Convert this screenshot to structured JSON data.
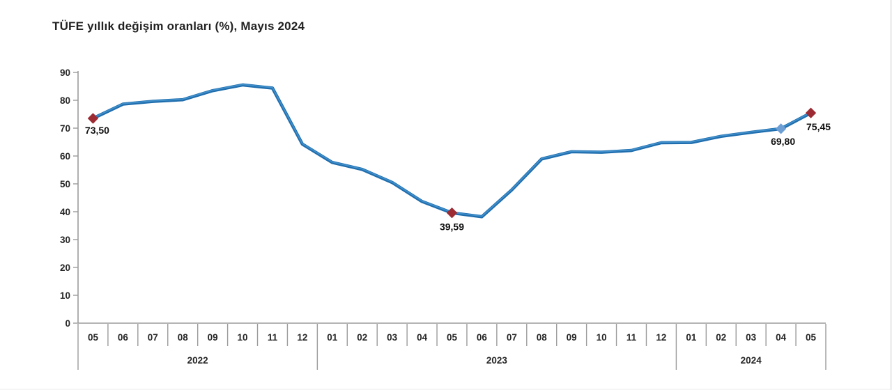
{
  "chart_data": {
    "type": "line",
    "title": "TÜFE yıllık değişim oranları (%), Mayıs 2024",
    "xlabel": "",
    "ylabel": "",
    "ylim": [
      0,
      90
    ],
    "ytick_step": 10,
    "grid": false,
    "legend": "none",
    "months": [
      "05",
      "06",
      "07",
      "08",
      "09",
      "10",
      "11",
      "12",
      "01",
      "02",
      "03",
      "04",
      "05",
      "06",
      "07",
      "08",
      "09",
      "10",
      "11",
      "12",
      "01",
      "02",
      "03",
      "04",
      "05"
    ],
    "year_groups": [
      {
        "label": "2022",
        "count": 8
      },
      {
        "label": "2023",
        "count": 12
      },
      {
        "label": "2024",
        "count": 5
      }
    ],
    "series": [
      {
        "name": "TÜFE yıllık değişim oranı (%)",
        "values": [
          73.5,
          78.62,
          79.6,
          80.21,
          83.45,
          85.51,
          84.39,
          64.27,
          57.68,
          55.18,
          50.51,
          43.68,
          39.59,
          38.21,
          47.83,
          58.94,
          61.53,
          61.36,
          61.98,
          64.77,
          64.86,
          67.07,
          68.5,
          69.8,
          75.45
        ]
      }
    ],
    "annotated_points": [
      {
        "index": 0,
        "label": "73,50",
        "marker": "diamond",
        "marker_color": "#9c2b33"
      },
      {
        "index": 12,
        "label": "39,59",
        "marker": "diamond",
        "marker_color": "#9c2b33"
      },
      {
        "index": 23,
        "label": "69,80",
        "marker": "diamond",
        "marker_color": "#6d9fd4"
      },
      {
        "index": 24,
        "label": "75,45",
        "marker": "diamond",
        "marker_color": "#9c2b33"
      }
    ],
    "colors": {
      "line": "#1f6dad",
      "line_highlight": "#4695cf",
      "axis": "#9b9b9b",
      "tick_text": "#262626",
      "annotation_text": "#111111"
    }
  }
}
